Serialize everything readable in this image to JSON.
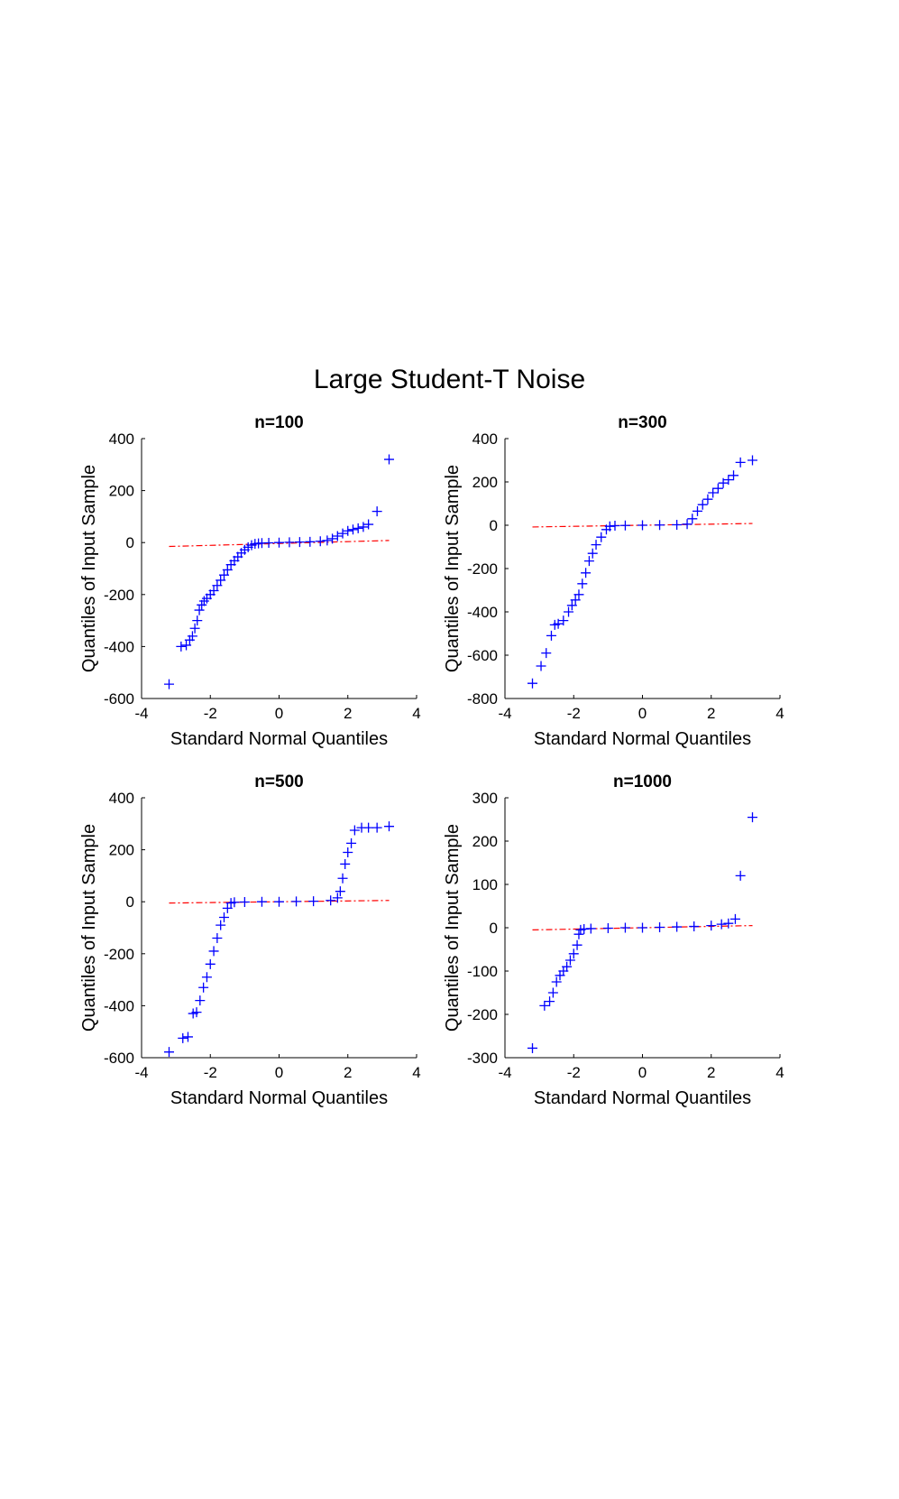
{
  "figure": {
    "suptitle": "Large Student-T Noise"
  },
  "colors": {
    "points": "#0000ff",
    "reference_line": "#ff0000",
    "axes": "#000000"
  },
  "chart_data": [
    {
      "type": "scatter",
      "title": "n=100",
      "xlabel": "Standard Normal Quantiles",
      "ylabel": "Quantiles of Input Sample",
      "xlim": [
        -4,
        4
      ],
      "ylim": [
        -600,
        400
      ],
      "xticks": [
        -4,
        -2,
        0,
        2,
        4
      ],
      "yticks": [
        -600,
        -400,
        -200,
        0,
        200,
        400
      ],
      "grid": false,
      "marker": "+",
      "reference_line": {
        "style": "dash-dot",
        "x": [
          -3.2,
          3.2
        ],
        "y": [
          -15,
          8
        ]
      },
      "points": {
        "x": [
          -3.2,
          -2.85,
          -2.7,
          -2.6,
          -2.52,
          -2.45,
          -2.38,
          -2.32,
          -2.25,
          -2.18,
          -2.1,
          -2.0,
          -1.9,
          -1.8,
          -1.7,
          -1.6,
          -1.5,
          -1.4,
          -1.3,
          -1.2,
          -1.1,
          -1.0,
          -0.9,
          -0.8,
          -0.7,
          -0.6,
          -0.5,
          -0.3,
          0.0,
          0.3,
          0.6,
          0.9,
          1.2,
          1.4,
          1.55,
          1.7,
          1.85,
          2.0,
          2.15,
          2.3,
          2.45,
          2.6,
          2.85,
          3.2
        ],
        "y": [
          -545,
          -400,
          -395,
          -375,
          -360,
          -330,
          -300,
          -260,
          -240,
          -225,
          -215,
          -200,
          -185,
          -165,
          -145,
          -125,
          -105,
          -85,
          -70,
          -55,
          -40,
          -28,
          -18,
          -10,
          -5,
          -3,
          -2,
          -1,
          0,
          1,
          2,
          3,
          5,
          8,
          15,
          25,
          35,
          45,
          50,
          55,
          60,
          70,
          120,
          320
        ]
      }
    },
    {
      "type": "scatter",
      "title": "n=300",
      "xlabel": "Standard Normal Quantiles",
      "ylabel": "Quantiles of Input Sample",
      "xlim": [
        -4,
        4
      ],
      "ylim": [
        -800,
        400
      ],
      "xticks": [
        -4,
        -2,
        0,
        2,
        4
      ],
      "yticks": [
        -800,
        -600,
        -400,
        -200,
        0,
        200,
        400
      ],
      "grid": false,
      "marker": "+",
      "reference_line": {
        "style": "dash-dot",
        "x": [
          -3.2,
          3.2
        ],
        "y": [
          -8,
          8
        ]
      },
      "points": {
        "x": [
          -3.2,
          -2.95,
          -2.8,
          -2.65,
          -2.55,
          -2.45,
          -2.3,
          -2.15,
          -2.05,
          -1.95,
          -1.85,
          -1.75,
          -1.65,
          -1.55,
          -1.45,
          -1.35,
          -1.2,
          -1.05,
          -0.95,
          -0.8,
          -0.5,
          0.0,
          0.5,
          1.0,
          1.3,
          1.45,
          1.6,
          1.75,
          1.9,
          2.05,
          2.2,
          2.35,
          2.5,
          2.65,
          2.85,
          3.2
        ],
        "y": [
          -730,
          -650,
          -590,
          -510,
          -460,
          -455,
          -440,
          -400,
          -370,
          -345,
          -320,
          -270,
          -220,
          -165,
          -130,
          -90,
          -55,
          -20,
          -5,
          -2,
          -1,
          0,
          1,
          2,
          5,
          30,
          65,
          95,
          120,
          150,
          170,
          195,
          210,
          230,
          290,
          300
        ]
      }
    },
    {
      "type": "scatter",
      "title": "n=500",
      "xlabel": "Standard Normal Quantiles",
      "ylabel": "Quantiles of Input Sample",
      "xlim": [
        -4,
        4
      ],
      "ylim": [
        -600,
        400
      ],
      "xticks": [
        -4,
        -2,
        0,
        2,
        4
      ],
      "yticks": [
        -600,
        -400,
        -200,
        0,
        200,
        400
      ],
      "grid": false,
      "marker": "+",
      "reference_line": {
        "style": "dash-dot",
        "x": [
          -3.2,
          3.2
        ],
        "y": [
          -5,
          5
        ]
      },
      "points": {
        "x": [
          -3.2,
          -2.8,
          -2.65,
          -2.5,
          -2.4,
          -2.3,
          -2.2,
          -2.1,
          -2.0,
          -1.9,
          -1.8,
          -1.7,
          -1.6,
          -1.5,
          -1.4,
          -1.3,
          -1.0,
          -0.5,
          0.0,
          0.5,
          1.0,
          1.5,
          1.7,
          1.78,
          1.85,
          1.92,
          2.0,
          2.1,
          2.2,
          2.4,
          2.6,
          2.85,
          3.2
        ],
        "y": [
          -578,
          -525,
          -520,
          -430,
          -425,
          -380,
          -330,
          -290,
          -240,
          -190,
          -140,
          -90,
          -60,
          -25,
          -5,
          -2,
          -1,
          0,
          0,
          1,
          2,
          5,
          15,
          40,
          90,
          145,
          190,
          225,
          275,
          285,
          285,
          285,
          290
        ]
      }
    },
    {
      "type": "scatter",
      "title": "n=1000",
      "xlabel": "Standard Normal Quantiles",
      "ylabel": "Quantiles of Input Sample",
      "xlim": [
        -4,
        4
      ],
      "ylim": [
        -300,
        300
      ],
      "xticks": [
        -4,
        -2,
        0,
        2,
        4
      ],
      "yticks": [
        -300,
        -200,
        -100,
        0,
        100,
        200,
        300
      ],
      "grid": false,
      "marker": "+",
      "reference_line": {
        "style": "dash-dot",
        "x": [
          -3.2,
          3.2
        ],
        "y": [
          -5,
          5
        ]
      },
      "points": {
        "x": [
          -3.2,
          -2.85,
          -2.7,
          -2.6,
          -2.5,
          -2.4,
          -2.3,
          -2.2,
          -2.1,
          -2.0,
          -1.9,
          -1.85,
          -1.8,
          -1.7,
          -1.5,
          -1.0,
          -0.5,
          0.0,
          0.5,
          1.0,
          1.5,
          2.0,
          2.3,
          2.5,
          2.7,
          2.85,
          3.2
        ],
        "y": [
          -278,
          -180,
          -170,
          -150,
          -125,
          -110,
          -100,
          -90,
          -75,
          -60,
          -40,
          -15,
          -5,
          -3,
          -2,
          -1,
          0,
          0,
          1,
          2,
          3,
          5,
          8,
          10,
          20,
          120,
          255
        ]
      }
    }
  ]
}
